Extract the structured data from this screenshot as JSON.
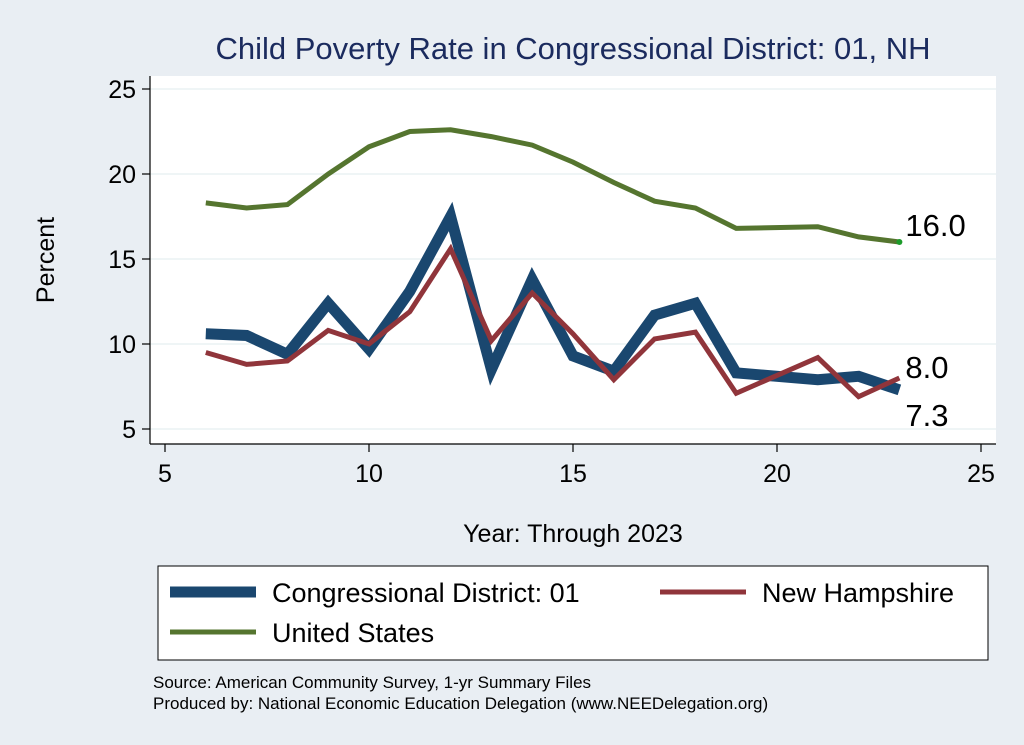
{
  "chart_data": {
    "type": "line",
    "title": "Child Poverty Rate in Congressional District:  01, NH",
    "xlabel": "Year: Through 2023",
    "ylabel": "Percent",
    "xlim": [
      5,
      25
    ],
    "ylim": [
      5,
      25
    ],
    "xticks": [
      5,
      10,
      15,
      20,
      25
    ],
    "yticks": [
      5,
      10,
      15,
      20,
      25
    ],
    "grid": true,
    "legend_position": "bottom",
    "series": [
      {
        "name": "Congressional District:  01",
        "color": "#1a476f",
        "x": [
          6,
          7,
          8,
          9,
          10,
          11,
          12,
          13,
          14,
          15,
          16,
          17,
          18,
          19,
          21,
          22,
          23
        ],
        "y": [
          10.6,
          10.5,
          9.4,
          12.4,
          9.7,
          13.1,
          17.5,
          8.5,
          13.8,
          9.3,
          8.4,
          11.7,
          12.4,
          8.3,
          7.9,
          8.1,
          7.3
        ],
        "end_label": "7.3"
      },
      {
        "name": "New Hampshire",
        "color": "#90353b",
        "x": [
          6,
          7,
          8,
          9,
          10,
          11,
          12,
          13,
          14,
          15,
          16,
          17,
          18,
          19,
          21,
          22,
          23
        ],
        "y": [
          9.5,
          8.8,
          9.0,
          10.8,
          10.0,
          11.9,
          15.6,
          10.2,
          13.0,
          10.6,
          7.9,
          10.3,
          10.7,
          7.1,
          9.2,
          6.9,
          8.0
        ],
        "end_label": "8.0"
      },
      {
        "name": "United States",
        "color": "#55752f",
        "x": [
          6,
          7,
          8,
          9,
          10,
          11,
          12,
          13,
          14,
          15,
          16,
          17,
          18,
          19,
          21,
          22,
          23
        ],
        "y": [
          18.3,
          18.0,
          18.2,
          20.0,
          21.6,
          22.5,
          22.6,
          22.2,
          21.7,
          20.7,
          19.5,
          18.4,
          18.0,
          16.8,
          16.9,
          16.3,
          16.0
        ],
        "end_label": "16.0"
      }
    ]
  },
  "notes": {
    "source": "Source: American Community Survey, 1-yr Summary Files",
    "produced_by": "Produced by: National Economic Education Delegation (www.NEEDelegation.org)"
  }
}
